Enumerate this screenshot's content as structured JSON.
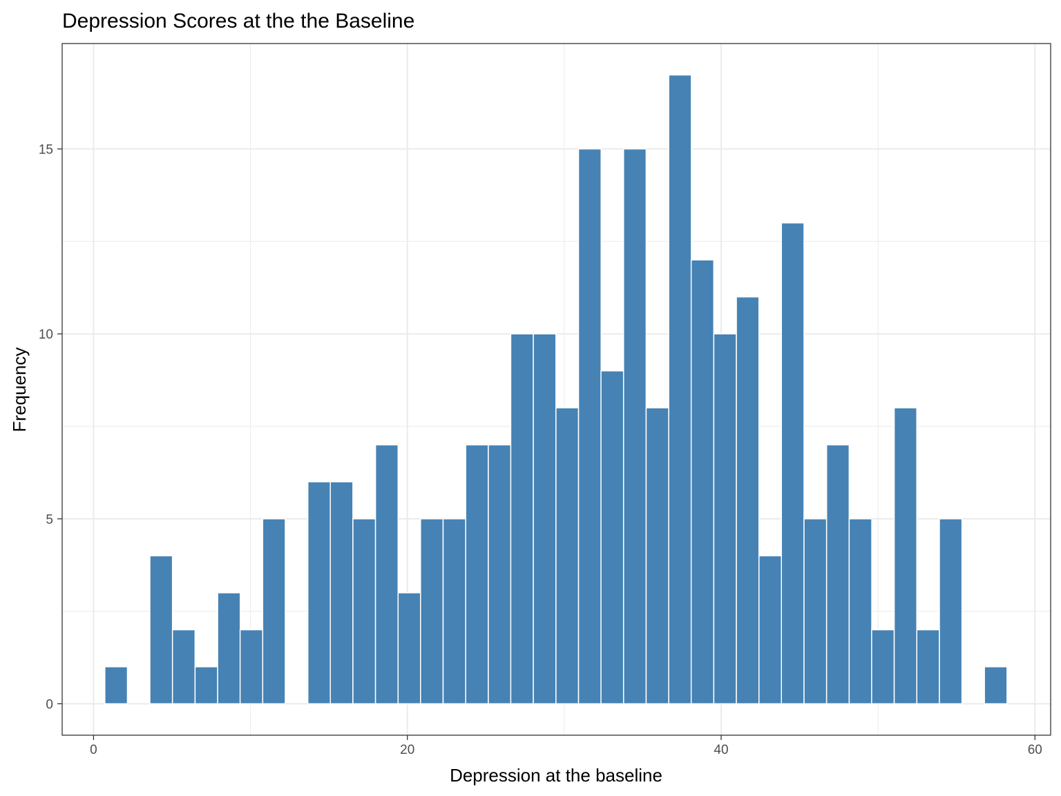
{
  "chart_data": {
    "type": "bar",
    "title": "Depression Scores at the the Baseline",
    "xlabel": "Depression at the baseline",
    "ylabel": "Frequency",
    "xlim": [
      -2,
      61
    ],
    "ylim": [
      -0.85,
      17.85
    ],
    "x_ticks": [
      0,
      20,
      40,
      60
    ],
    "y_ticks": [
      0,
      5,
      10,
      15
    ],
    "bin_width": 1.4375,
    "bins": [
      {
        "x": 1.44,
        "count": 1
      },
      {
        "x": 4.31,
        "count": 4
      },
      {
        "x": 5.75,
        "count": 2
      },
      {
        "x": 7.19,
        "count": 1
      },
      {
        "x": 8.63,
        "count": 3
      },
      {
        "x": 10.06,
        "count": 2
      },
      {
        "x": 11.5,
        "count": 5
      },
      {
        "x": 14.38,
        "count": 6
      },
      {
        "x": 15.81,
        "count": 6
      },
      {
        "x": 17.25,
        "count": 5
      },
      {
        "x": 18.69,
        "count": 7
      },
      {
        "x": 20.13,
        "count": 3
      },
      {
        "x": 21.56,
        "count": 5
      },
      {
        "x": 23.0,
        "count": 5
      },
      {
        "x": 24.44,
        "count": 7
      },
      {
        "x": 25.88,
        "count": 7
      },
      {
        "x": 27.31,
        "count": 10
      },
      {
        "x": 28.75,
        "count": 10
      },
      {
        "x": 30.19,
        "count": 8
      },
      {
        "x": 31.63,
        "count": 15
      },
      {
        "x": 33.06,
        "count": 9
      },
      {
        "x": 34.5,
        "count": 15
      },
      {
        "x": 35.94,
        "count": 8
      },
      {
        "x": 37.38,
        "count": 17
      },
      {
        "x": 38.81,
        "count": 12
      },
      {
        "x": 40.25,
        "count": 10
      },
      {
        "x": 41.69,
        "count": 11
      },
      {
        "x": 43.13,
        "count": 4
      },
      {
        "x": 44.56,
        "count": 13
      },
      {
        "x": 46.0,
        "count": 5
      },
      {
        "x": 47.44,
        "count": 7
      },
      {
        "x": 48.88,
        "count": 5
      },
      {
        "x": 50.31,
        "count": 2
      },
      {
        "x": 51.75,
        "count": 8
      },
      {
        "x": 53.19,
        "count": 2
      },
      {
        "x": 54.63,
        "count": 5
      },
      {
        "x": 57.5,
        "count": 1
      }
    ],
    "bar_color": "#4682B4",
    "bar_outline_color": "#ffffff",
    "grid": true,
    "grid_color": "#ebebeb",
    "panel_border_color": "#333333",
    "legend": "none"
  }
}
